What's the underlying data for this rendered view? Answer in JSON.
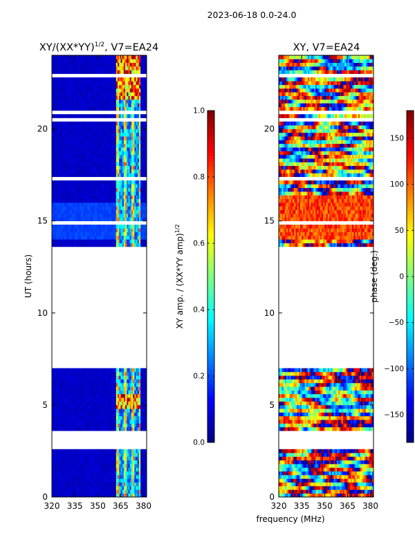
{
  "figure_title": "2023-06-18 0.0-24.0",
  "shared_xlabel": "frequency (MHz)",
  "chart_data": [
    {
      "type": "heatmap",
      "title_main": "XY/(XX*YY)",
      "title_sup": "1/2",
      "title_tail": ", V7=EA24",
      "xlabel": "frequency (MHz)",
      "ylabel": "UT (hours)",
      "xlim": [
        320,
        382
      ],
      "ylim": [
        0,
        24
      ],
      "xticks": [
        320,
        335,
        350,
        365,
        380
      ],
      "yticks": [
        0,
        5,
        10,
        15,
        20
      ],
      "colorbar": {
        "label_main": "XY amp. / (XX*YY amp)",
        "label_sup": "1/2",
        "range": [
          0.0,
          1.0
        ],
        "ticks": [
          0.0,
          0.2,
          0.4,
          0.6,
          0.8,
          1.0
        ],
        "tick_labels": [
          "0.0",
          "0.2",
          "0.4",
          "0.6",
          "0.8",
          "1.0"
        ]
      },
      "data_time_ranges_hours": [
        [
          0.0,
          2.6
        ],
        [
          3.7,
          7.1
        ],
        [
          13.7,
          24.0
        ]
      ],
      "bright_channel_band_mhz": [
        362,
        378
      ],
      "typical_value_outside_band": 0.05,
      "typical_value_in_band": 0.5
    },
    {
      "type": "heatmap",
      "title_main": "XY, V7=EA24",
      "xlabel": "frequency (MHz)",
      "ylabel": "",
      "xlim": [
        320,
        382
      ],
      "ylim": [
        0,
        24
      ],
      "xticks": [
        320,
        335,
        350,
        365,
        380
      ],
      "yticks": [
        0,
        5,
        10,
        15,
        20
      ],
      "colorbar": {
        "label_main": "phase (deg.)",
        "range": [
          -180,
          180
        ],
        "ticks": [
          -150,
          -100,
          -50,
          0,
          50,
          100,
          150
        ],
        "tick_labels": [
          "−150",
          "−100",
          "−50",
          "0",
          "50",
          "100",
          "150"
        ]
      },
      "data_time_ranges_hours": [
        [
          0.0,
          2.6
        ],
        [
          3.7,
          7.1
        ],
        [
          13.7,
          24.0
        ]
      ]
    }
  ]
}
